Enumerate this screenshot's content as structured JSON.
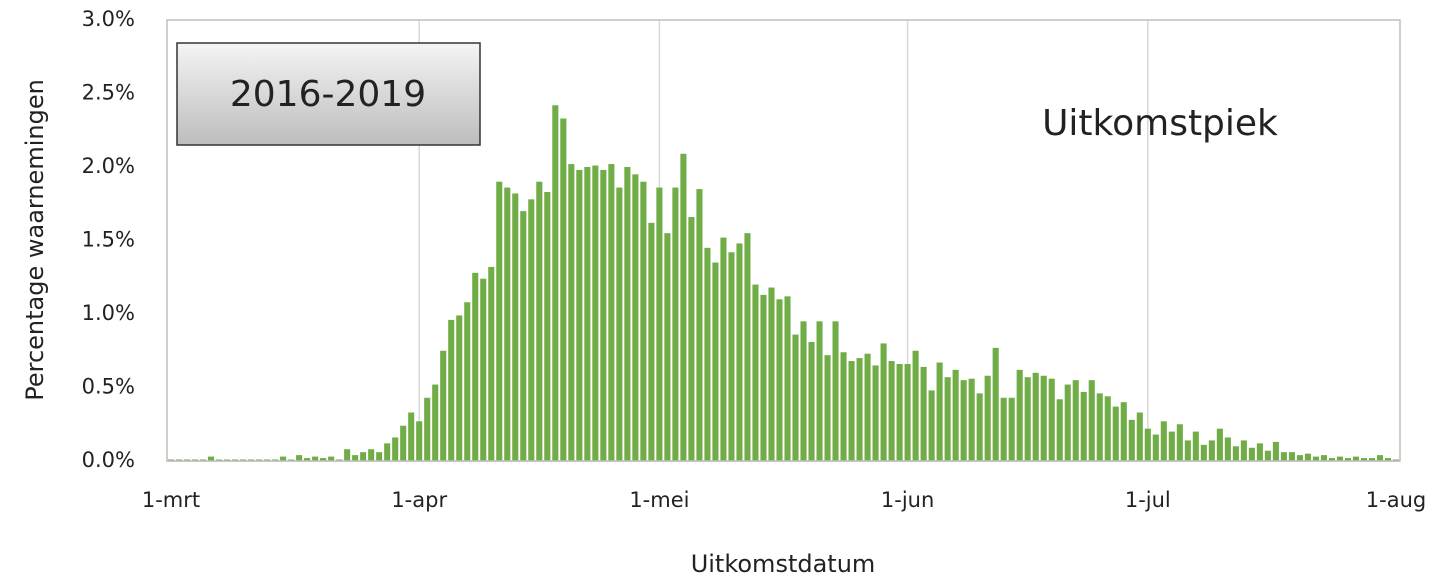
{
  "chart_data": {
    "type": "bar",
    "title_box": "2016-2019",
    "annotation": "Uitkomstpiek",
    "x_label": "Uitkomstdatum",
    "y_label": "Percentage waarnemingen",
    "color": "#70ad47",
    "ylim": [
      0,
      3
    ],
    "yticks": [
      {
        "value": 0,
        "label": "0.0%"
      },
      {
        "value": 0.5,
        "label": "0.5%"
      },
      {
        "value": 1,
        "label": "1.0%"
      },
      {
        "value": 1.5,
        "label": "1.5%"
      },
      {
        "value": 2,
        "label": "2.0%"
      },
      {
        "value": 2.5,
        "label": "2.5%"
      },
      {
        "value": 3,
        "label": "3.0%"
      }
    ],
    "grid": "vertical",
    "categories": [
      "1-mrt",
      null,
      null,
      null,
      null,
      null,
      null,
      null,
      null,
      null,
      null,
      null,
      null,
      null,
      null,
      null,
      null,
      null,
      null,
      null,
      null,
      null,
      null,
      null,
      null,
      null,
      null,
      null,
      null,
      null,
      null,
      "1-apr",
      null,
      null,
      null,
      null,
      null,
      null,
      null,
      null,
      null,
      null,
      null,
      null,
      null,
      null,
      null,
      null,
      null,
      null,
      null,
      null,
      null,
      null,
      null,
      null,
      null,
      null,
      null,
      null,
      null,
      "1-mei",
      null,
      null,
      null,
      null,
      null,
      null,
      null,
      null,
      null,
      null,
      null,
      null,
      null,
      null,
      null,
      null,
      null,
      null,
      null,
      null,
      null,
      null,
      null,
      null,
      null,
      null,
      null,
      null,
      null,
      null,
      "1-jun",
      null,
      null,
      null,
      null,
      null,
      null,
      null,
      null,
      null,
      null,
      null,
      null,
      null,
      null,
      null,
      null,
      null,
      null,
      null,
      null,
      null,
      null,
      null,
      null,
      null,
      null,
      null,
      null,
      null,
      "1-jul",
      null,
      null,
      null,
      null,
      null,
      null,
      null,
      null,
      null,
      null,
      null,
      null,
      null,
      null,
      null,
      null,
      null,
      null,
      null,
      null,
      null,
      null,
      null,
      null,
      null,
      null,
      null,
      null,
      null,
      null,
      "1-aug"
    ],
    "values": [
      0.01,
      0.01,
      0.01,
      0.01,
      0.01,
      0.03,
      0.01,
      0.01,
      0.01,
      0.01,
      0.01,
      0.01,
      0.01,
      0.01,
      0.03,
      0.01,
      0.04,
      0.02,
      0.03,
      0.02,
      0.03,
      0.01,
      0.08,
      0.04,
      0.06,
      0.08,
      0.06,
      0.12,
      0.16,
      0.24,
      0.33,
      0.27,
      0.43,
      0.52,
      0.75,
      0.96,
      0.99,
      1.08,
      1.28,
      1.24,
      1.32,
      1.9,
      1.86,
      1.82,
      1.7,
      1.78,
      1.9,
      1.83,
      2.42,
      2.33,
      2.02,
      1.98,
      2.0,
      2.01,
      1.98,
      2.02,
      1.86,
      2.0,
      1.95,
      1.9,
      1.62,
      1.86,
      1.55,
      1.86,
      2.09,
      1.66,
      1.85,
      1.45,
      1.35,
      1.52,
      1.42,
      1.48,
      1.55,
      1.2,
      1.13,
      1.18,
      1.1,
      1.12,
      0.86,
      0.95,
      0.81,
      0.95,
      0.72,
      0.95,
      0.74,
      0.68,
      0.7,
      0.73,
      0.65,
      0.8,
      0.68,
      0.66,
      0.66,
      0.75,
      0.64,
      0.48,
      0.67,
      0.57,
      0.62,
      0.55,
      0.56,
      0.46,
      0.58,
      0.77,
      0.43,
      0.43,
      0.62,
      0.57,
      0.6,
      0.58,
      0.56,
      0.42,
      0.52,
      0.55,
      0.47,
      0.55,
      0.46,
      0.44,
      0.37,
      0.4,
      0.28,
      0.33,
      0.22,
      0.18,
      0.27,
      0.2,
      0.25,
      0.14,
      0.2,
      0.11,
      0.14,
      0.22,
      0.16,
      0.1,
      0.14,
      0.09,
      0.12,
      0.07,
      0.13,
      0.06,
      0.06,
      0.04,
      0.05,
      0.03,
      0.04,
      0.02,
      0.03,
      0.02,
      0.03,
      0.02,
      0.02,
      0.04,
      0.02,
      0.01
    ]
  }
}
